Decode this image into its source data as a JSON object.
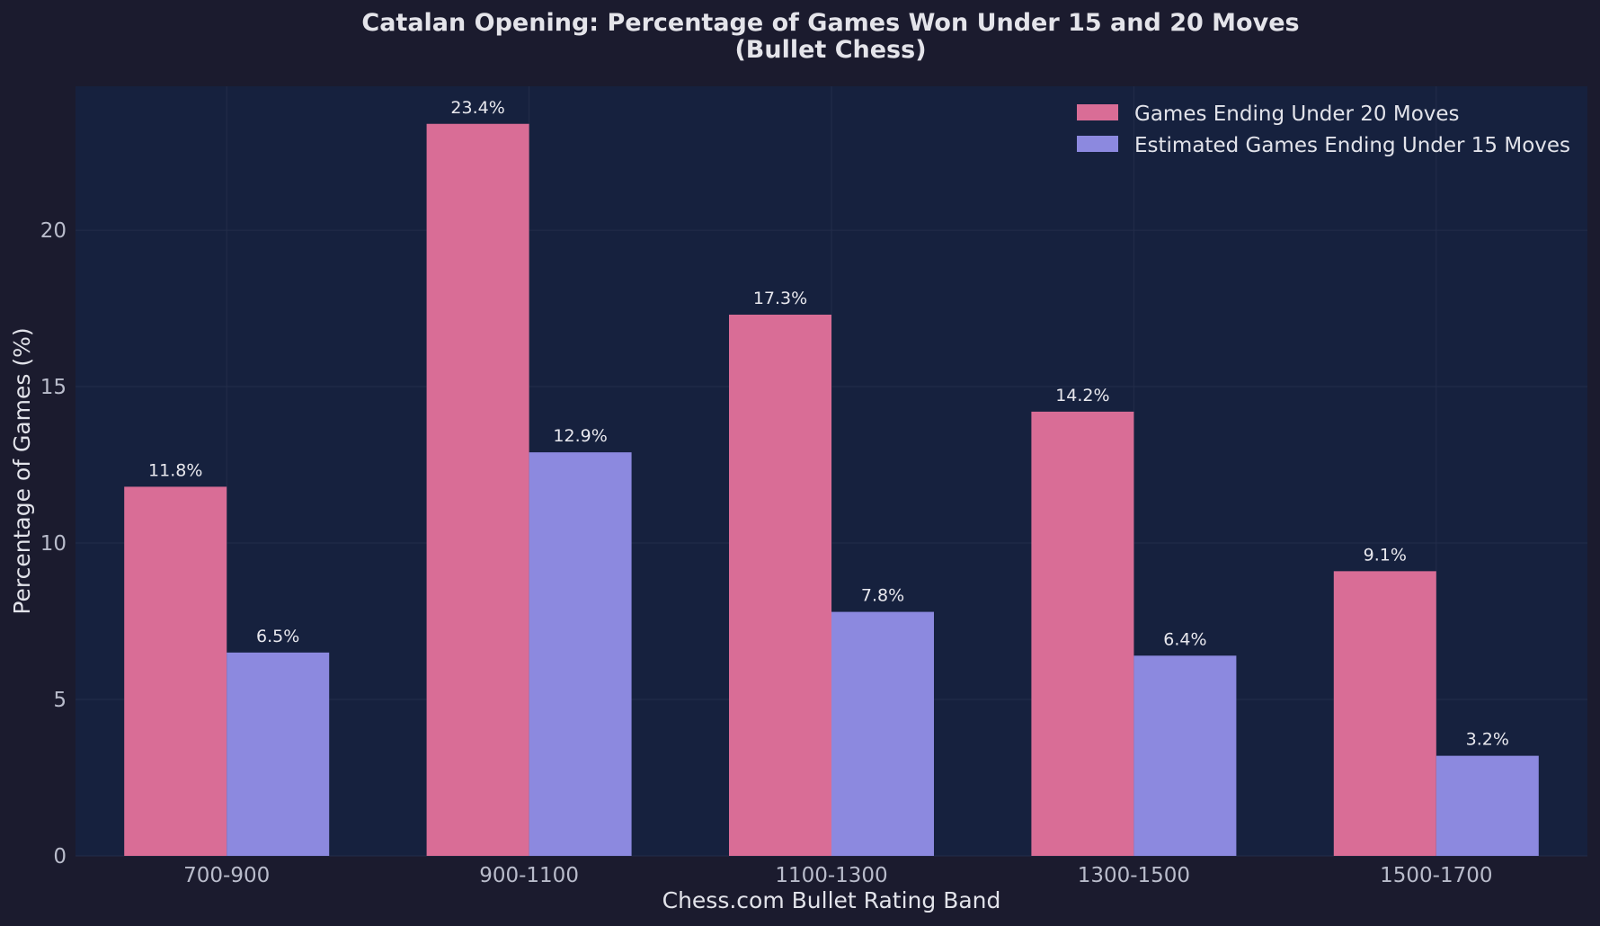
{
  "chart_data": {
    "type": "bar",
    "title": "Catalan Opening: Percentage of Games Won Under 15 and 20 Moves",
    "subtitle": "(Bullet Chess)",
    "xlabel": "Chess.com Bullet Rating Band",
    "ylabel": "Percentage of Games (%)",
    "categories": [
      "700-900",
      "900-1100",
      "1100-1300",
      "1300-1500",
      "1500-1700"
    ],
    "series": [
      {
        "name": "Games Ending Under 20 Moves",
        "color": "#d96d96",
        "values": [
          11.8,
          23.4,
          17.3,
          14.2,
          9.1
        ],
        "labels": [
          "11.8%",
          "23.4%",
          "17.3%",
          "14.2%",
          "9.1%"
        ]
      },
      {
        "name": "Estimated Games Ending Under 15 Moves",
        "color": "#8c89df",
        "values": [
          6.5,
          12.9,
          7.8,
          6.4,
          3.2
        ],
        "labels": [
          "6.5%",
          "12.9%",
          "7.8%",
          "6.4%",
          "3.2%"
        ]
      }
    ],
    "ylim": [
      0,
      24.6
    ],
    "yticks": [
      0,
      5,
      10,
      15,
      20
    ],
    "ytick_labels": [
      "0",
      "5",
      "10",
      "15",
      "20"
    ],
    "grid": true,
    "legend_position": "top-right",
    "colors": {
      "figure_background": "#1b1b2e",
      "plot_background": "#16213e",
      "grid": "#232d4a",
      "text": "#e2e3ea",
      "tick_text": "#b9bccb"
    }
  }
}
